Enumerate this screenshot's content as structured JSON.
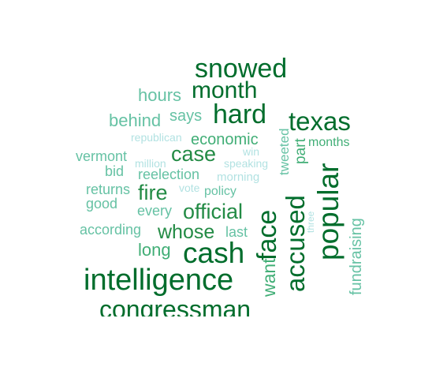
{
  "palette": {
    "c1": "#006d2c",
    "c2": "#238b45",
    "c3": "#41ae76",
    "c4": "#66c2a4",
    "c5": "#99d8c9",
    "c6": "#b2e2e2"
  },
  "words": [
    {
      "text": "snowed",
      "color": "c1"
    },
    {
      "text": "month",
      "color": "c1"
    },
    {
      "text": "hours",
      "color": "c4"
    },
    {
      "text": "hard",
      "color": "c1"
    },
    {
      "text": "says",
      "color": "c4"
    },
    {
      "text": "behind",
      "color": "c4"
    },
    {
      "text": "texas",
      "color": "c1"
    },
    {
      "text": "tweeted",
      "color": "c4"
    },
    {
      "text": "economic",
      "color": "c3"
    },
    {
      "text": "part",
      "color": "c3"
    },
    {
      "text": "months",
      "color": "c3"
    },
    {
      "text": "republican",
      "color": "c6"
    },
    {
      "text": "case",
      "color": "c2"
    },
    {
      "text": "win",
      "color": "c6"
    },
    {
      "text": "vermont",
      "color": "c4"
    },
    {
      "text": "million",
      "color": "c6"
    },
    {
      "text": "speaking",
      "color": "c6"
    },
    {
      "text": "popular",
      "color": "c1"
    },
    {
      "text": "bid",
      "color": "c4"
    },
    {
      "text": "reelection",
      "color": "c4"
    },
    {
      "text": "morning",
      "color": "c6"
    },
    {
      "text": "returns",
      "color": "c4"
    },
    {
      "text": "fire",
      "color": "c2"
    },
    {
      "text": "vote",
      "color": "c6"
    },
    {
      "text": "policy",
      "color": "c4"
    },
    {
      "text": "good",
      "color": "c4"
    },
    {
      "text": "every",
      "color": "c4"
    },
    {
      "text": "official",
      "color": "c2"
    },
    {
      "text": "face",
      "color": "c1"
    },
    {
      "text": "accused",
      "color": "c1"
    },
    {
      "text": "three",
      "color": "c6"
    },
    {
      "text": "fundraising",
      "color": "c4"
    },
    {
      "text": "according",
      "color": "c4"
    },
    {
      "text": "whose",
      "color": "c2"
    },
    {
      "text": "last",
      "color": "c4"
    },
    {
      "text": "long",
      "color": "c3"
    },
    {
      "text": "cash",
      "color": "c1"
    },
    {
      "text": "want",
      "color": "c3"
    },
    {
      "text": "intelligence",
      "color": "c1"
    },
    {
      "text": "congressman",
      "color": "c1"
    }
  ]
}
